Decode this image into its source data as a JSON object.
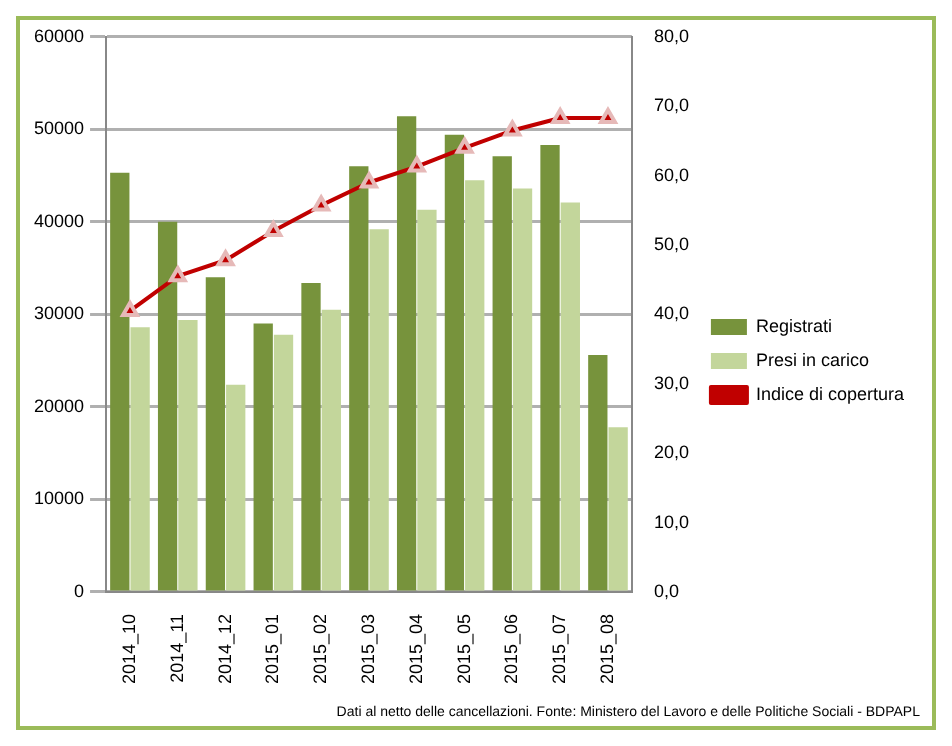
{
  "chart_data": {
    "type": "bar",
    "categories": [
      "2014_10",
      "2014_11",
      "2014_12",
      "2015_01",
      "2015_02",
      "2015_03",
      "2015_04",
      "2015_05",
      "2015_06",
      "2015_07",
      "2015_08"
    ],
    "series": [
      {
        "name": "Registrati",
        "color": "#77933c",
        "values": [
          45300,
          40000,
          34000,
          29000,
          33400,
          46000,
          51400,
          49400,
          47100,
          48300,
          25600
        ]
      },
      {
        "name": "Presi in carico",
        "color": "#c3d69b",
        "values": [
          28600,
          29400,
          22400,
          27800,
          30500,
          39200,
          41300,
          44500,
          43600,
          42100,
          17800
        ]
      },
      {
        "name": "Indice di copertura",
        "type": "line",
        "axis": "y2",
        "color": "#c00000",
        "marker": "triangle",
        "values": [
          40.5,
          45.5,
          47.8,
          52,
          55.7,
          59,
          61.3,
          64,
          66.5,
          68.3,
          68.3
        ]
      }
    ],
    "ylim": [
      0,
      60000
    ],
    "yticks": [
      0,
      10000,
      20000,
      30000,
      40000,
      50000,
      60000
    ],
    "y2lim": [
      0,
      80
    ],
    "y2ticks": [
      {
        "value": 0,
        "label": "0,0"
      },
      {
        "value": 10,
        "label": "10,0"
      },
      {
        "value": 20,
        "label": "20,0"
      },
      {
        "value": 30,
        "label": "30,0"
      },
      {
        "value": 40,
        "label": "40,0"
      },
      {
        "value": 50,
        "label": "50,0"
      },
      {
        "value": 60,
        "label": "60,0"
      },
      {
        "value": 70,
        "label": "70,0"
      },
      {
        "value": 80,
        "label": "80,0"
      }
    ],
    "grid": "y",
    "legend": "right",
    "annotations": [
      "Dati al netto delle cancellazioni. Fonte: Ministero del Lavoro e delle Politiche Sociali - BDPAPL"
    ]
  }
}
